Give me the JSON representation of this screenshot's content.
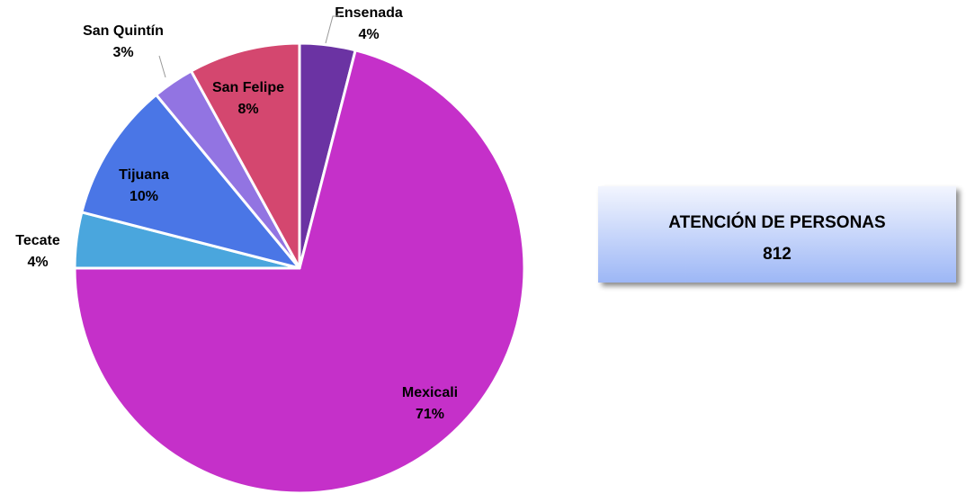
{
  "chart_data": {
    "type": "pie",
    "categories": [
      "Ensenada",
      "Mexicali",
      "Tecate",
      "Tijuana",
      "San Quintín",
      "San Felipe"
    ],
    "values": [
      4,
      71,
      4,
      10,
      3,
      8
    ],
    "value_labels": [
      "4%",
      "71%",
      "4%",
      "10%",
      "3%",
      "8%"
    ],
    "colors": [
      "#6b33a3",
      "#c530c9",
      "#4aa6dd",
      "#4a76e6",
      "#9274e2",
      "#d4476f"
    ],
    "annotation": {
      "text": "ATENCIÓN DE PERSONAS",
      "total": 812
    }
  }
}
